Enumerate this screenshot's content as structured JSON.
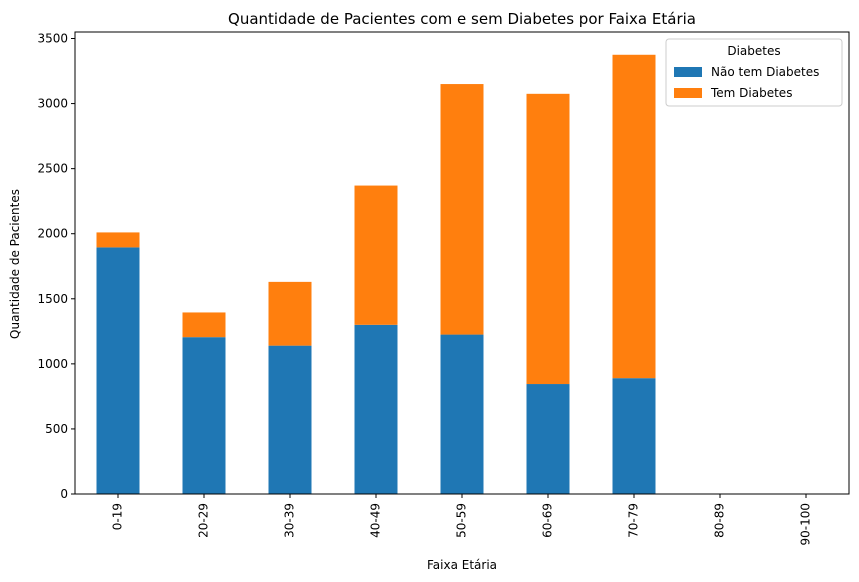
{
  "chart_data": {
    "type": "bar",
    "stacked": true,
    "title": "Quantidade de Pacientes com e sem Diabetes por Faixa Etária",
    "xlabel": "Faixa Etária",
    "ylabel": "Quantidade de Pacientes",
    "categories": [
      "0-19",
      "20-29",
      "30-39",
      "40-49",
      "50-59",
      "60-69",
      "70-79",
      "80-89",
      "90-100"
    ],
    "series": [
      {
        "name": "Não tem Diabetes",
        "color": "#1f77b4",
        "values": [
          1895,
          1205,
          1140,
          1300,
          1225,
          845,
          890,
          0,
          0
        ]
      },
      {
        "name": "Tem Diabetes",
        "color": "#ff7f0e",
        "values": [
          115,
          190,
          490,
          1070,
          1925,
          2230,
          2485,
          0,
          0
        ]
      }
    ],
    "ylim": [
      0,
      3550
    ],
    "yticks": [
      0,
      500,
      1000,
      1500,
      2000,
      2500,
      3000,
      3500
    ],
    "legend": {
      "title": "Diabetes",
      "placement": "top-right"
    },
    "grid": false
  }
}
